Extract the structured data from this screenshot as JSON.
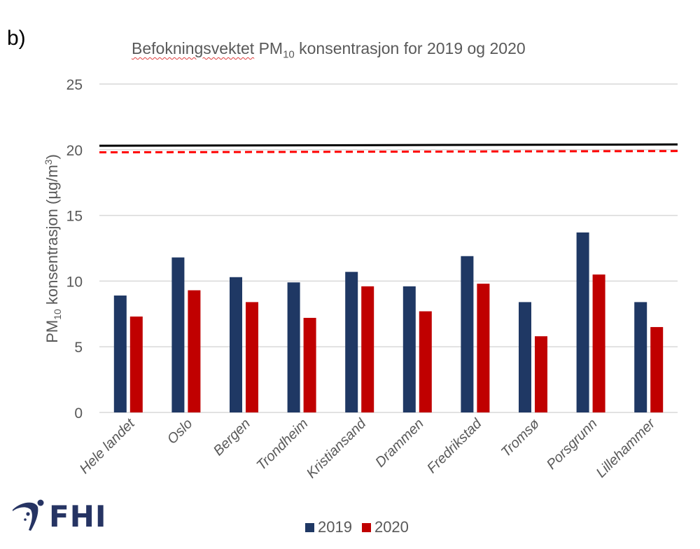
{
  "panel_label": "b)",
  "title": {
    "prefix": "Befokningsvektet",
    "pm": "PM",
    "pm_sub": "10",
    "suffix": "konsentrasjon for 2019 og 2020"
  },
  "logo": {
    "text": "FHI",
    "icon": "fhi-swoosh-icon",
    "color": "#263463"
  },
  "colors": {
    "series_2019": "#1f3864",
    "series_2020": "#c00000",
    "limit_solid": "#000000",
    "limit_dashed": "#ff0000",
    "grid": "#d9d9d9"
  },
  "chart_data": {
    "type": "bar",
    "title": "Befokningsvektet PM10 konsentrasjon for 2019 og 2020",
    "xlabel": "",
    "ylabel": "PM10 konsentrasjon (µg/m3)",
    "ylabel_parts": {
      "pm": "PM",
      "sub": "10",
      "rest": " konsentrasjon (µg/m",
      "sup": "3",
      "end": ")"
    },
    "ylim": [
      0,
      25
    ],
    "yticks": [
      0,
      5,
      10,
      15,
      20,
      25
    ],
    "grid": true,
    "legend_position": "bottom",
    "categories": [
      "Hele landet",
      "Oslo",
      "Bergen",
      "Trondheim",
      "Kristiansand",
      "Drammen",
      "Fredrikstad",
      "Tromsø",
      "Porsgrunn",
      "Lillehammer"
    ],
    "series": [
      {
        "name": "2019",
        "color": "#1f3864",
        "values": [
          8.9,
          11.8,
          10.3,
          9.9,
          10.7,
          9.6,
          11.9,
          8.4,
          13.7,
          8.4
        ]
      },
      {
        "name": "2020",
        "color": "#c00000",
        "values": [
          7.3,
          9.3,
          8.4,
          7.2,
          9.6,
          7.7,
          9.8,
          5.8,
          10.5,
          6.5
        ]
      }
    ],
    "reference_lines": [
      {
        "name": "limit-solid",
        "style": "solid",
        "color": "#000000",
        "start": 20.3,
        "end": 20.4
      },
      {
        "name": "limit-dashed",
        "style": "dashed",
        "color": "#ff0000",
        "start": 19.8,
        "end": 19.9
      }
    ]
  }
}
